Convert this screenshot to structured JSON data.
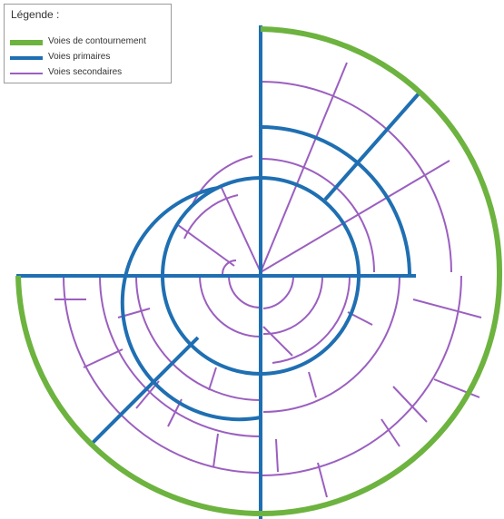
{
  "legend": {
    "title": "Légende :",
    "items": [
      {
        "label": "Voies de contournement",
        "color": "#6db33f"
      },
      {
        "label": "Voies primaires",
        "color": "#1f6fb2"
      },
      {
        "label": "Voies secondaires",
        "color": "#9b5fc0"
      }
    ]
  }
}
